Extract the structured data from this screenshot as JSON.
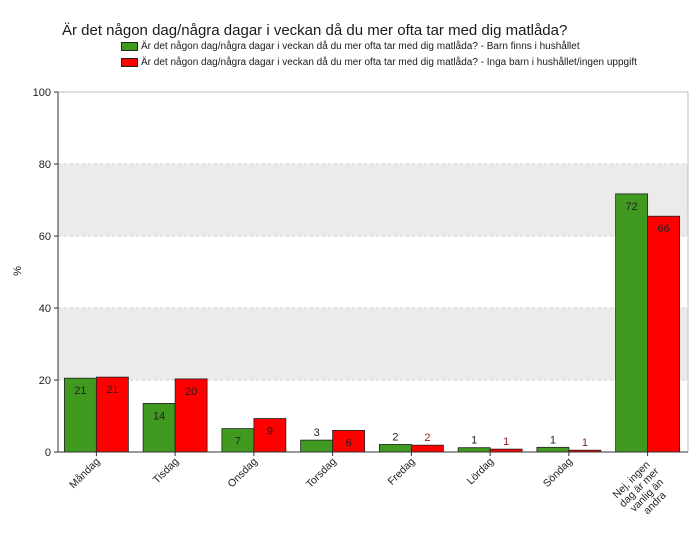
{
  "chart_data": {
    "type": "bar",
    "title": "Är det någon dag/några dagar i veckan då du mer ofta tar med dig matlåda?",
    "ylabel": "%",
    "xlabel": "",
    "ylim": [
      0,
      100
    ],
    "yticks": [
      0,
      20,
      40,
      60,
      80,
      100
    ],
    "grid": true,
    "legend_position": "top",
    "categories": [
      "Måndag",
      "Tisdag",
      "Onsdag",
      "Torsdag",
      "Fredag",
      "Lördag",
      "Söndag",
      "Nej, ingen dag är mer vanlig än andra"
    ],
    "series": [
      {
        "name": "Är det någon dag/några dagar i veckan då du mer ofta tar med dig matlåda? - Barn finns i hushållet",
        "color": "#3f9a1f",
        "values": [
          20.5,
          13.5,
          6.5,
          3.3,
          2.1,
          1.2,
          1.3,
          71.7
        ],
        "labels": [
          "21",
          "14",
          "7",
          "3",
          "2",
          "1",
          "1",
          "72"
        ]
      },
      {
        "name": "Är det någon dag/några dagar i veckan då du mer ofta tar med dig matlåda? - Inga barn i hushållet/ingen uppgift",
        "color": "#ff0000",
        "values": [
          20.8,
          20.3,
          9.3,
          6.0,
          1.9,
          0.8,
          0.5,
          65.5
        ],
        "labels": [
          "21",
          "20",
          "9",
          "6",
          "2",
          "1",
          "1",
          "66"
        ]
      }
    ]
  },
  "colors": {
    "panel_background": "#ebebeb",
    "grid_band": "#ffffff",
    "axis": "#333333"
  }
}
